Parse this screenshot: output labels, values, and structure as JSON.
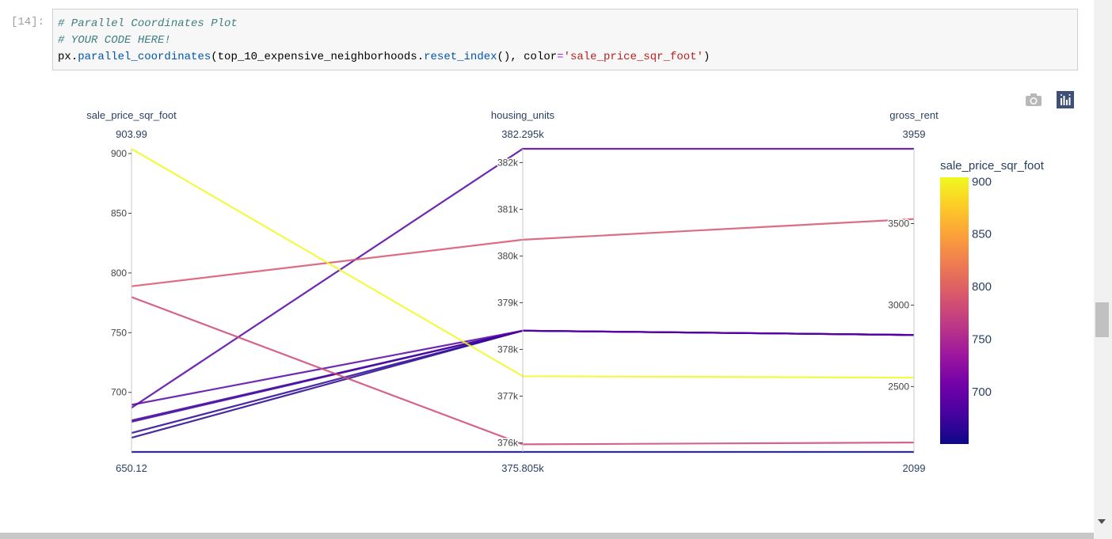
{
  "cell": {
    "prompt": "[14]:",
    "line1": "# Parallel Coordinates Plot",
    "line2": "# YOUR CODE HERE!",
    "line3": {
      "obj": "px",
      "dot1": ".",
      "fn1": "parallel_coordinates",
      "open": "(top_10_expensive_neighborhoods",
      "dot2": ".",
      "fn2": "reset_index",
      "mid": "(), color",
      "eq": "=",
      "str": "'sale_price_sqr_foot'",
      "close": ")"
    }
  },
  "modebar": {
    "camera_icon": "camera-icon",
    "plotly_logo": "plotly-logo-icon"
  },
  "chart_data": {
    "type": "parallel_coordinates",
    "dimensions": [
      {
        "label": "sale_price_sqr_foot",
        "range": [
          650.12,
          903.99
        ],
        "range_labels": [
          "903.99",
          "650.12"
        ],
        "ticks": [
          700,
          750,
          800,
          850,
          900
        ],
        "tick_labels": [
          "700",
          "750",
          "800",
          "850",
          "900"
        ]
      },
      {
        "label": "housing_units",
        "range": [
          375805,
          382295
        ],
        "range_labels": [
          "382.295k",
          "375.805k"
        ],
        "ticks": [
          376000,
          377000,
          378000,
          379000,
          380000,
          381000,
          382000
        ],
        "tick_labels": [
          "376k",
          "377k",
          "378k",
          "379k",
          "380k",
          "381k",
          "382k"
        ]
      },
      {
        "label": "gross_rent",
        "range": [
          2099,
          3959
        ],
        "range_labels": [
          "3959",
          "2099"
        ],
        "ticks": [
          2500,
          3000,
          3500
        ],
        "tick_labels": [
          "2500",
          "3000",
          "3500"
        ]
      }
    ],
    "rows": [
      {
        "sale_price_sqr_foot": 903.99,
        "housing_units": 377427,
        "gross_rent": 2555
      },
      {
        "sale_price_sqr_foot": 788.84,
        "housing_units": 380348,
        "gross_rent": 3528
      },
      {
        "sale_price_sqr_foot": 779.81,
        "housing_units": 375967,
        "gross_rent": 2157
      },
      {
        "sale_price_sqr_foot": 689.56,
        "housing_units": 378401,
        "gross_rent": 2817
      },
      {
        "sale_price_sqr_foot": 687.09,
        "housing_units": 382295,
        "gross_rent": 3959
      },
      {
        "sale_price_sqr_foot": 676.51,
        "housing_units": 378401,
        "gross_rent": 2817
      },
      {
        "sale_price_sqr_foot": 675.35,
        "housing_units": 378401,
        "gross_rent": 2817
      },
      {
        "sale_price_sqr_foot": 665.96,
        "housing_units": 378401,
        "gross_rent": 2817
      },
      {
        "sale_price_sqr_foot": 662.01,
        "housing_units": 378401,
        "gross_rent": 2817
      },
      {
        "sale_price_sqr_foot": 650.12,
        "housing_units": 375805,
        "gross_rent": 2099
      }
    ],
    "colorbar": {
      "title": "sale_price_sqr_foot",
      "range": [
        650.12,
        903.99
      ],
      "ticks": [
        700,
        750,
        800,
        850,
        900
      ],
      "tick_labels": [
        "700",
        "750",
        "800",
        "850",
        "900"
      ],
      "colorscale": [
        "#0d0887",
        "#46039f",
        "#7201a8",
        "#9c179e",
        "#bd3786",
        "#d8576b",
        "#ed7953",
        "#fb9f3a",
        "#fdca26",
        "#f0f921"
      ]
    }
  }
}
